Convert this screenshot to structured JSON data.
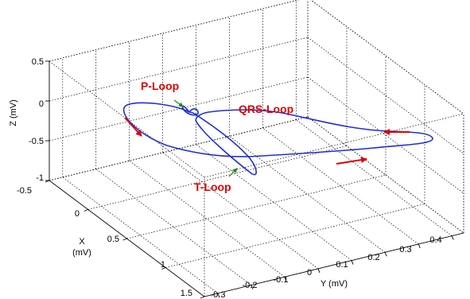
{
  "chart_data": {
    "type": "line3d",
    "title": "",
    "xlabel": "X\n(mV)",
    "ylabel": "Y (mV)",
    "zlabel": "Z (mV)",
    "xlim": [
      -0.5,
      1.5
    ],
    "ylim": [
      -0.3,
      0.45
    ],
    "zlim": [
      -1,
      0.5
    ],
    "x_ticks": [
      "-0.5",
      "0",
      "0.5",
      "1",
      "1.5"
    ],
    "y_ticks": [
      "-0.3",
      "-0.2",
      "-0.1",
      "0",
      "0.1",
      "0.2",
      "0.3",
      "0.4"
    ],
    "z_ticks": [
      "-1",
      "-0.5",
      "0",
      "0.5"
    ],
    "grid": true,
    "line_color": "#1f2fd8",
    "annotation_color": "#e00000",
    "pointer_color": "#1a8a1a",
    "annotations": [
      "P-Loop",
      "QRS-Loop",
      "T-Loop"
    ]
  }
}
